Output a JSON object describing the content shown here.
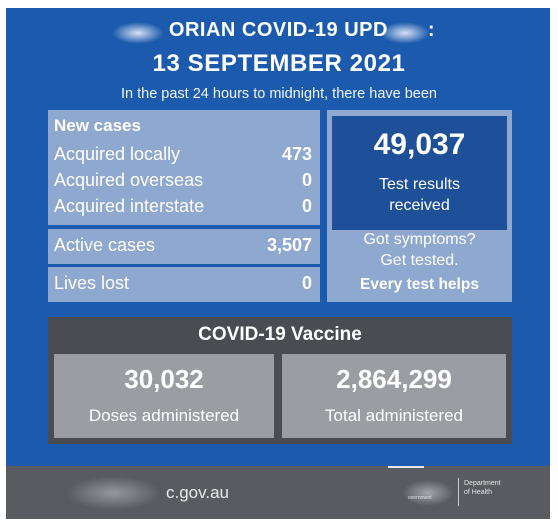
{
  "header": {
    "title_line1": "ORIAN COVID-19 UPD",
    "title_colon": ":",
    "date": "13 SEPTEMBER 2021",
    "subtitle": "In the past 24 hours to midnight, there have been"
  },
  "new_cases": {
    "heading": "New cases",
    "rows": [
      {
        "label": "Acquired locally",
        "value": "473"
      },
      {
        "label": "Acquired overseas",
        "value": "0"
      },
      {
        "label": "Acquired interstate",
        "value": "0"
      }
    ]
  },
  "active_cases": {
    "label": "Active cases",
    "value": "3,507"
  },
  "lives_lost": {
    "label": "Lives lost",
    "value": "0"
  },
  "tests": {
    "value": "49,037",
    "label_line1": "Test results",
    "label_line2": "received"
  },
  "symptoms": {
    "line1": "Got symptoms?",
    "line2": "Get tested.",
    "line3": "Every test helps"
  },
  "vaccine": {
    "title": "COVID-19 Vaccine",
    "boxes": [
      {
        "value": "30,032",
        "label": "Doses administered"
      },
      {
        "value": "2,864,299",
        "label": "Total administered"
      }
    ]
  },
  "footer": {
    "url_fragment": "c.gov.au",
    "dept_line1": "Department",
    "dept_line2": "of Health",
    "gov_small": "overnment"
  },
  "colors": {
    "brand_blue": "#1b5aad",
    "panel_light": "#8fa8cf",
    "test_box": "#1e4f99",
    "vaccine_band": "#4a4c52",
    "vaccine_box": "#9b9da3",
    "footer": "#5a5b60"
  }
}
